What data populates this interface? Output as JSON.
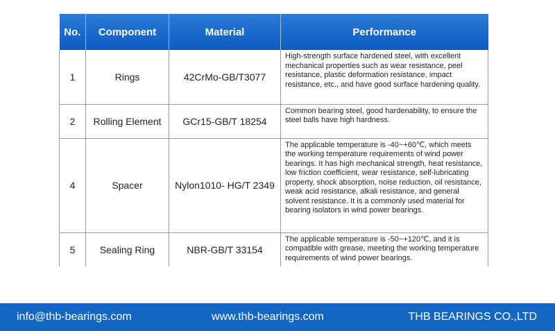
{
  "table": {
    "header": [
      "No.",
      "Component",
      "Material",
      "Performance"
    ],
    "rows": [
      [
        "1",
        "Rings",
        "42CrMo-GB/T3077",
        "High-strength surface hardened steel, with excellent mechanical properties such as wear resistance, peel resistance, plastic deformation resistance, impact resistance, etc., and have good surface hardening quality."
      ],
      [
        "2",
        "Rolling Element",
        "GCr15-GB/T 18254",
        "Common bearing steel, good hardenability, to ensure the steel balls have high hardness."
      ],
      [
        "4",
        "Spacer",
        "Nylon1010- HG/T 2349",
        "The applicable temperature is -40~+60℃, which meets the working temperature requirements of wind power bearings. It has high mechanical strength, heat resistance, low friction coefficient, wear resistance, self-lubricating property, shock absorption, noise reduction, oil resistance, weak acid resistance, alkali resistance, and general solvent resistance. It is a commonly used material for bearing isolators in wind power bearings."
      ],
      [
        "5",
        "Sealing Ring",
        "NBR-GB/T 33154",
        "The applicable temperature is -50~+120℃, and it is compatible with grease, meeting the working temperature requirements of wind power bearings."
      ]
    ]
  },
  "footer": {
    "email": "info@thb-bearings.com",
    "website": "www.thb-bearings.com",
    "company": "THB BEARINGS CO.,LTD"
  }
}
